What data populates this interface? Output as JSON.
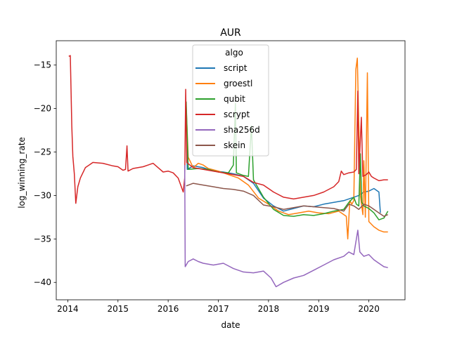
{
  "chart_data": {
    "type": "line",
    "title": "AUR",
    "xlabel": "date",
    "ylabel": "log_winning_rate",
    "xlim": [
      2013.77,
      2020.72
    ],
    "ylim": [
      -42,
      -12.2
    ],
    "x_ticks": [
      2014,
      2015,
      2016,
      2017,
      2018,
      2019,
      2020
    ],
    "x_tick_labels": [
      "2014",
      "2015",
      "2016",
      "2017",
      "2018",
      "2019",
      "2020"
    ],
    "y_ticks": [
      -40,
      -35,
      -30,
      -25,
      -20,
      -15
    ],
    "y_tick_labels": [
      "−40",
      "−35",
      "−30",
      "−25",
      "−20",
      "−15"
    ],
    "grid": false,
    "legend": {
      "title": "algo",
      "placement": "top-center"
    },
    "series": [
      {
        "name": "script",
        "color": "#1f77b4",
        "points": [
          [
            2016.36,
            -20.4
          ],
          [
            2016.38,
            -27.0
          ],
          [
            2016.5,
            -26.6
          ],
          [
            2016.7,
            -26.8
          ],
          [
            2016.9,
            -27.2
          ],
          [
            2017.1,
            -27.3
          ],
          [
            2017.3,
            -27.5
          ],
          [
            2017.5,
            -27.8
          ],
          [
            2017.7,
            -28.6
          ],
          [
            2017.9,
            -30.3
          ],
          [
            2018.1,
            -31.2
          ],
          [
            2018.3,
            -31.8
          ],
          [
            2018.5,
            -31.5
          ],
          [
            2018.7,
            -31.2
          ],
          [
            2018.9,
            -31.3
          ],
          [
            2019.1,
            -31.0
          ],
          [
            2019.3,
            -30.8
          ],
          [
            2019.5,
            -30.6
          ],
          [
            2019.7,
            -30.2
          ],
          [
            2019.8,
            -30.0
          ],
          [
            2019.9,
            -29.6
          ],
          [
            2020.0,
            -29.5
          ],
          [
            2020.1,
            -29.2
          ],
          [
            2020.2,
            -29.6
          ],
          [
            2020.23,
            -32.0
          ]
        ]
      },
      {
        "name": "groestl",
        "color": "#ff7f0e",
        "points": [
          [
            2016.36,
            -19.8
          ],
          [
            2016.4,
            -25.6
          ],
          [
            2016.5,
            -26.8
          ],
          [
            2016.6,
            -26.3
          ],
          [
            2016.7,
            -26.5
          ],
          [
            2016.8,
            -26.9
          ],
          [
            2017.0,
            -27.2
          ],
          [
            2017.2,
            -27.6
          ],
          [
            2017.4,
            -28.0
          ],
          [
            2017.6,
            -28.8
          ],
          [
            2017.8,
            -30.3
          ],
          [
            2018.0,
            -31.0
          ],
          [
            2018.2,
            -31.8
          ],
          [
            2018.4,
            -32.2
          ],
          [
            2018.6,
            -32.0
          ],
          [
            2018.8,
            -31.8
          ],
          [
            2019.0,
            -32.0
          ],
          [
            2019.2,
            -32.1
          ],
          [
            2019.4,
            -31.8
          ],
          [
            2019.55,
            -32.4
          ],
          [
            2019.58,
            -35.0
          ],
          [
            2019.62,
            -30.6
          ],
          [
            2019.66,
            -31.0
          ],
          [
            2019.7,
            -30.6
          ],
          [
            2019.74,
            -15.5
          ],
          [
            2019.77,
            -14.2
          ],
          [
            2019.8,
            -22.0
          ],
          [
            2019.83,
            -30.0
          ],
          [
            2019.88,
            -32.2
          ],
          [
            2019.9,
            -26.0
          ],
          [
            2019.93,
            -32.5
          ],
          [
            2019.97,
            -15.9
          ],
          [
            2020.0,
            -33.0
          ],
          [
            2020.1,
            -33.6
          ],
          [
            2020.2,
            -34.0
          ],
          [
            2020.3,
            -34.2
          ],
          [
            2020.38,
            -34.2
          ]
        ]
      },
      {
        "name": "qubit",
        "color": "#2ca02c",
        "points": [
          [
            2016.36,
            -19.2
          ],
          [
            2016.4,
            -27.0
          ],
          [
            2016.6,
            -26.9
          ],
          [
            2016.8,
            -27.0
          ],
          [
            2017.0,
            -27.3
          ],
          [
            2017.2,
            -27.4
          ],
          [
            2017.3,
            -26.5
          ],
          [
            2017.34,
            -19.4
          ],
          [
            2017.36,
            -27.4
          ],
          [
            2017.5,
            -27.7
          ],
          [
            2017.6,
            -27.8
          ],
          [
            2017.66,
            -22.0
          ],
          [
            2017.7,
            -28.2
          ],
          [
            2017.9,
            -30.2
          ],
          [
            2018.1,
            -31.6
          ],
          [
            2018.3,
            -32.3
          ],
          [
            2018.5,
            -32.4
          ],
          [
            2018.7,
            -32.2
          ],
          [
            2018.9,
            -32.3
          ],
          [
            2019.1,
            -32.1
          ],
          [
            2019.3,
            -31.8
          ],
          [
            2019.5,
            -31.6
          ],
          [
            2019.6,
            -30.8
          ],
          [
            2019.7,
            -30.2
          ],
          [
            2019.75,
            -31.0
          ],
          [
            2019.8,
            -31.2
          ],
          [
            2019.83,
            -25.2
          ],
          [
            2019.86,
            -30.8
          ],
          [
            2019.9,
            -31.2
          ],
          [
            2020.0,
            -31.5
          ],
          [
            2020.1,
            -32.0
          ],
          [
            2020.2,
            -32.8
          ],
          [
            2020.3,
            -32.6
          ],
          [
            2020.38,
            -31.8
          ]
        ]
      },
      {
        "name": "scrypt",
        "color": "#d62728",
        "points": [
          [
            2014.02,
            -14.0
          ],
          [
            2014.05,
            -13.9
          ],
          [
            2014.08,
            -22.0
          ],
          [
            2014.1,
            -25.5
          ],
          [
            2014.13,
            -27.5
          ],
          [
            2014.16,
            -30.9
          ],
          [
            2014.2,
            -29.0
          ],
          [
            2014.25,
            -28.0
          ],
          [
            2014.35,
            -26.8
          ],
          [
            2014.5,
            -26.2
          ],
          [
            2014.7,
            -26.3
          ],
          [
            2014.9,
            -26.6
          ],
          [
            2015.0,
            -26.7
          ],
          [
            2015.1,
            -27.1
          ],
          [
            2015.15,
            -27.0
          ],
          [
            2015.18,
            -24.3
          ],
          [
            2015.2,
            -27.2
          ],
          [
            2015.3,
            -26.9
          ],
          [
            2015.4,
            -26.8
          ],
          [
            2015.5,
            -26.7
          ],
          [
            2015.6,
            -26.5
          ],
          [
            2015.7,
            -26.3
          ],
          [
            2015.8,
            -26.8
          ],
          [
            2015.9,
            -27.3
          ],
          [
            2016.0,
            -27.2
          ],
          [
            2016.1,
            -27.4
          ],
          [
            2016.2,
            -28.0
          ],
          [
            2016.3,
            -29.6
          ],
          [
            2016.33,
            -28.0
          ],
          [
            2016.35,
            -17.8
          ],
          [
            2016.37,
            -26.2
          ],
          [
            2016.5,
            -26.8
          ],
          [
            2016.7,
            -27.0
          ],
          [
            2016.9,
            -27.2
          ],
          [
            2017.1,
            -27.4
          ],
          [
            2017.3,
            -27.6
          ],
          [
            2017.5,
            -27.8
          ],
          [
            2017.7,
            -28.5
          ],
          [
            2017.9,
            -28.8
          ],
          [
            2018.1,
            -29.6
          ],
          [
            2018.3,
            -30.2
          ],
          [
            2018.5,
            -30.4
          ],
          [
            2018.7,
            -30.2
          ],
          [
            2018.9,
            -30.0
          ],
          [
            2019.1,
            -29.6
          ],
          [
            2019.3,
            -29.0
          ],
          [
            2019.4,
            -28.4
          ],
          [
            2019.45,
            -27.2
          ],
          [
            2019.5,
            -27.6
          ],
          [
            2019.6,
            -27.4
          ],
          [
            2019.7,
            -27.3
          ],
          [
            2019.75,
            -27.0
          ],
          [
            2019.78,
            -18.0
          ],
          [
            2019.8,
            -27.5
          ],
          [
            2019.85,
            -21.0
          ],
          [
            2019.88,
            -27.8
          ],
          [
            2019.95,
            -27.6
          ],
          [
            2020.0,
            -27.3
          ],
          [
            2020.05,
            -27.8
          ],
          [
            2020.1,
            -28.0
          ],
          [
            2020.2,
            -28.3
          ],
          [
            2020.3,
            -28.2
          ],
          [
            2020.38,
            -28.2
          ]
        ]
      },
      {
        "name": "sha256d",
        "color": "#9467bd",
        "points": [
          [
            2016.33,
            -26.5
          ],
          [
            2016.34,
            -38.2
          ],
          [
            2016.4,
            -37.6
          ],
          [
            2016.5,
            -37.3
          ],
          [
            2016.6,
            -37.6
          ],
          [
            2016.7,
            -37.8
          ],
          [
            2016.9,
            -38.0
          ],
          [
            2017.1,
            -37.8
          ],
          [
            2017.3,
            -38.4
          ],
          [
            2017.5,
            -38.8
          ],
          [
            2017.7,
            -38.9
          ],
          [
            2017.9,
            -38.7
          ],
          [
            2018.05,
            -39.5
          ],
          [
            2018.15,
            -40.5
          ],
          [
            2018.3,
            -40.0
          ],
          [
            2018.5,
            -39.5
          ],
          [
            2018.7,
            -39.2
          ],
          [
            2018.9,
            -38.6
          ],
          [
            2019.1,
            -38.0
          ],
          [
            2019.3,
            -37.4
          ],
          [
            2019.5,
            -37.0
          ],
          [
            2019.6,
            -36.5
          ],
          [
            2019.7,
            -36.8
          ],
          [
            2019.78,
            -34.0
          ],
          [
            2019.82,
            -36.5
          ],
          [
            2019.9,
            -37.0
          ],
          [
            2020.0,
            -36.8
          ],
          [
            2020.1,
            -37.4
          ],
          [
            2020.2,
            -37.8
          ],
          [
            2020.3,
            -38.2
          ],
          [
            2020.38,
            -38.3
          ]
        ]
      },
      {
        "name": "skein",
        "color": "#8c564b",
        "points": [
          [
            2016.36,
            -28.9
          ],
          [
            2016.5,
            -28.6
          ],
          [
            2016.7,
            -28.8
          ],
          [
            2016.9,
            -29.0
          ],
          [
            2017.1,
            -29.2
          ],
          [
            2017.3,
            -29.3
          ],
          [
            2017.5,
            -29.5
          ],
          [
            2017.7,
            -30.0
          ],
          [
            2017.9,
            -31.1
          ],
          [
            2018.1,
            -31.3
          ],
          [
            2018.3,
            -31.6
          ],
          [
            2018.5,
            -31.4
          ],
          [
            2018.7,
            -31.2
          ],
          [
            2018.9,
            -31.3
          ],
          [
            2019.1,
            -31.4
          ],
          [
            2019.3,
            -31.5
          ],
          [
            2019.5,
            -31.8
          ],
          [
            2019.6,
            -31.0
          ],
          [
            2019.7,
            -31.2
          ],
          [
            2019.8,
            -31.6
          ],
          [
            2019.9,
            -31.0
          ],
          [
            2020.0,
            -31.2
          ],
          [
            2020.1,
            -31.6
          ],
          [
            2020.2,
            -32.0
          ],
          [
            2020.3,
            -32.4
          ],
          [
            2020.38,
            -32.2
          ]
        ]
      }
    ]
  }
}
